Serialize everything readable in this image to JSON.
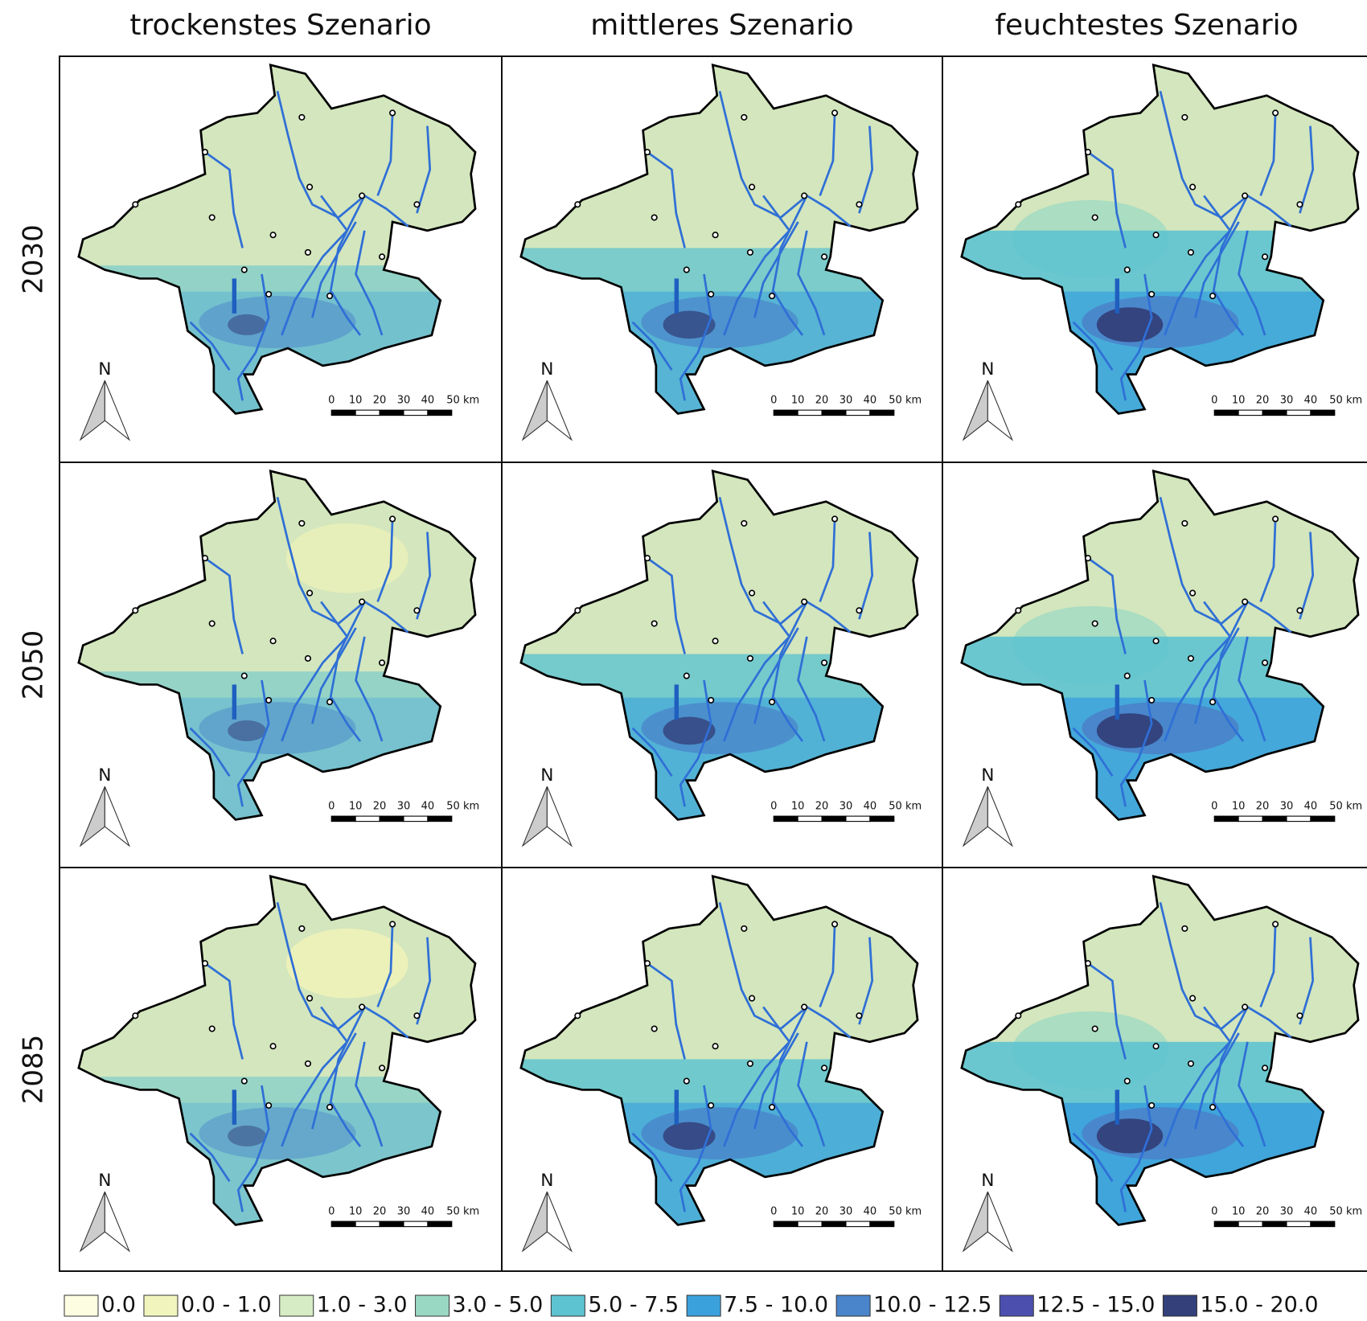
{
  "columns": [
    "trockenstes Szenario",
    "mittleres Szenario",
    "feuchtestes Szenario"
  ],
  "rows": [
    "2030",
    "2050",
    "2085"
  ],
  "north": "N",
  "scale_labels": [
    "0",
    "10",
    "20",
    "30",
    "40",
    "50 km"
  ],
  "legend": [
    {
      "label": "0.0",
      "color": "#fdfde2"
    },
    {
      "label": "0.0 - 1.0",
      "color": "#f1f5bd"
    },
    {
      "label": "1.0 - 3.0",
      "color": "#d5ecc4"
    },
    {
      "label": "3.0 - 5.0",
      "color": "#99d8c3"
    },
    {
      "label": "5.0 - 7.5",
      "color": "#5ec3d0"
    },
    {
      "label": "7.5 - 10.0",
      "color": "#3ba1dc"
    },
    {
      "label": "10.0 - 12.5",
      "color": "#4a84ca"
    },
    {
      "label": "12.5 - 15.0",
      "color": "#4c4fae"
    },
    {
      "label": "15.0 - 20.0",
      "color": "#33407a"
    }
  ]
}
